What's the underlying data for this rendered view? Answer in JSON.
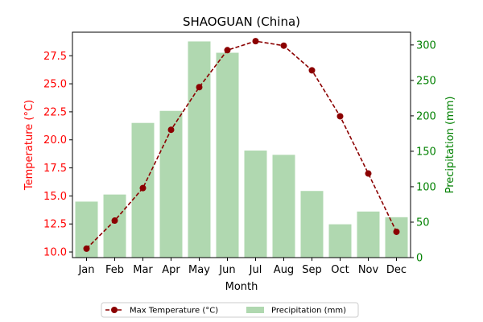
{
  "chart_data": {
    "type": "bar",
    "title": "SHAOGUAN (China)",
    "xlabel": "Month",
    "ylabel_left": "Temperature (°C)",
    "ylabel_right": "Precipitation (mm)",
    "categories": [
      "Jan",
      "Feb",
      "Mar",
      "Apr",
      "May",
      "Jun",
      "Jul",
      "Aug",
      "Sep",
      "Oct",
      "Nov",
      "Dec"
    ],
    "series": [
      {
        "name": "Max Temperature (°C)",
        "type": "line",
        "axis": "left",
        "color": "#8b0000",
        "values": [
          10.3,
          12.8,
          15.7,
          20.9,
          24.7,
          28.0,
          28.8,
          28.4,
          26.2,
          22.1,
          17.0,
          11.8
        ]
      },
      {
        "name": "Precipitation (mm)",
        "type": "bar",
        "axis": "right",
        "color": "#b0d8b0",
        "values": [
          79,
          89,
          190,
          207,
          305,
          289,
          151,
          145,
          94,
          47,
          65,
          57
        ]
      }
    ],
    "ylim_left": [
      9.5,
      29.6
    ],
    "ylim_right": [
      0,
      318
    ],
    "yticks_left": [
      "10.0",
      "12.5",
      "15.0",
      "17.5",
      "20.0",
      "22.5",
      "25.0",
      "27.5"
    ],
    "yticks_right": [
      "0",
      "50",
      "100",
      "150",
      "200",
      "250",
      "300"
    ],
    "left_axis_color": "#ff0000",
    "right_axis_color": "#008000",
    "grid": false,
    "legend_position": "bottom-center"
  }
}
